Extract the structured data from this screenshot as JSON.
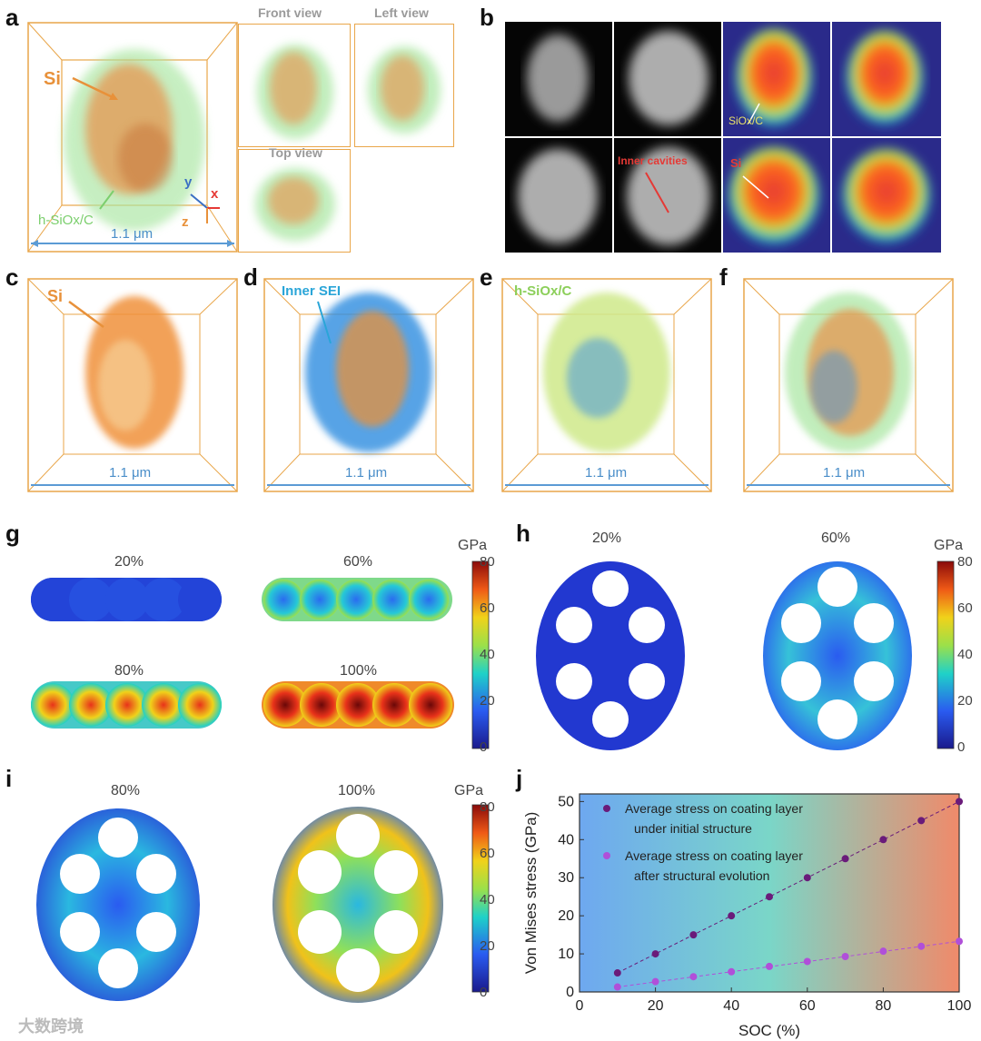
{
  "panels": {
    "a": "a",
    "b": "b",
    "c": "c",
    "d": "d",
    "e": "e",
    "f": "f",
    "g": "g",
    "h": "h",
    "i": "i",
    "j": "j"
  },
  "panel_a": {
    "si_label": "Si",
    "coating_label": "h-SiOx/C",
    "scale": "1.1 μm",
    "front_view": "Front view",
    "left_view": "Left view",
    "top_view": "Top view",
    "axis_x": "x",
    "axis_y": "y",
    "axis_z": "z"
  },
  "panel_b": {
    "inner_cavities": "Inner cavities",
    "siox_label": "SiOx/C",
    "si_label": "Si"
  },
  "panel_c": {
    "label": "Si",
    "scale": "1.1 μm"
  },
  "panel_d": {
    "label": "Inner SEI",
    "scale": "1.1 μm"
  },
  "panel_e": {
    "label": "h-SiOx/C",
    "scale": "1.1 μm"
  },
  "panel_f": {
    "scale": "1.1 μm"
  },
  "panel_g": {
    "soc_labels": [
      "20%",
      "60%",
      "80%",
      "100%"
    ],
    "colorbar_unit": "GPa",
    "colorbar_ticks": [
      "80",
      "60",
      "40",
      "20",
      "0"
    ]
  },
  "panel_h": {
    "soc_labels": [
      "20%",
      "60%"
    ],
    "colorbar_unit": "GPa",
    "colorbar_ticks": [
      "80",
      "60",
      "40",
      "20",
      "0"
    ]
  },
  "panel_i": {
    "soc_labels": [
      "80%",
      "100%"
    ],
    "colorbar_unit": "GPa",
    "colorbar_ticks": [
      "80",
      "60",
      "40",
      "20",
      "0"
    ]
  },
  "watermark": "大数跨境",
  "chart_data": {
    "type": "scatter",
    "xlabel": "SOC (%)",
    "ylabel": "Von Mises stress (GPa)",
    "xlim": [
      0,
      100
    ],
    "ylim": [
      0,
      52
    ],
    "xticks": [
      0,
      20,
      40,
      60,
      80,
      100
    ],
    "yticks": [
      0,
      10,
      20,
      30,
      40,
      50
    ],
    "x": [
      10,
      20,
      30,
      40,
      50,
      60,
      70,
      80,
      90,
      100
    ],
    "series": [
      {
        "name": "Average stress on coating layer under initial structure",
        "legend_line1": "Average stress on coating layer",
        "legend_line2": "under initial structure",
        "color": "#6a1b7a",
        "values": [
          5,
          10,
          15,
          20,
          25,
          30,
          35,
          40,
          45,
          50
        ]
      },
      {
        "name": "Average stress on coating layer after structural evolution",
        "legend_line1": "Average stress on coating layer",
        "legend_line2": "after structural evolution",
        "color": "#b04fd9",
        "values": [
          1.3,
          2.7,
          4.0,
          5.3,
          6.7,
          8.0,
          9.3,
          10.7,
          12.0,
          13.3
        ]
      }
    ],
    "background_gradient": [
      "#6ea8f0",
      "#7ad6c8",
      "#f08a6a"
    ]
  }
}
